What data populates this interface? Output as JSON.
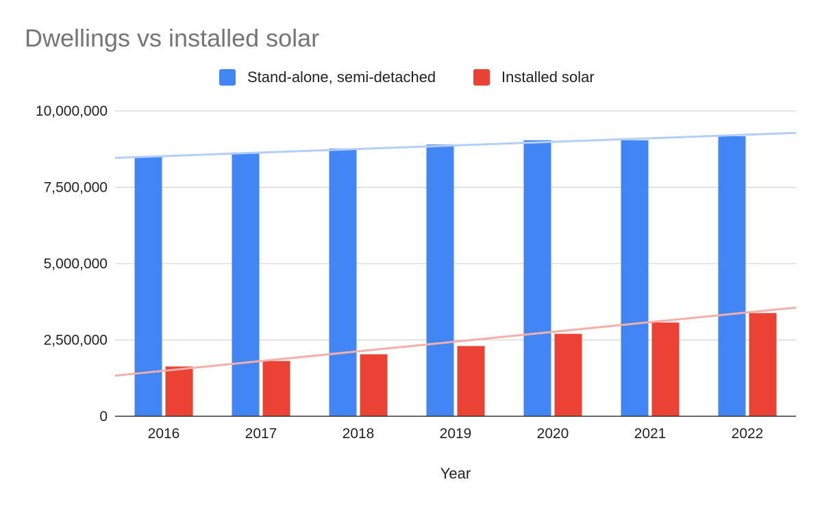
{
  "chart_data": {
    "type": "bar",
    "title": "Dwellings vs installed solar",
    "xlabel": "Year",
    "ylabel": "",
    "categories": [
      "2016",
      "2017",
      "2018",
      "2019",
      "2020",
      "2021",
      "2022"
    ],
    "series": [
      {
        "name": "Stand-alone, semi-detached",
        "color": "#4285F4",
        "values": [
          8500000,
          8640000,
          8770000,
          8900000,
          9040000,
          9040000,
          9170000
        ]
      },
      {
        "name": "Installed solar",
        "color": "#EA4335",
        "values": [
          1630000,
          1810000,
          2030000,
          2300000,
          2700000,
          3070000,
          3380000
        ]
      }
    ],
    "trendlines": [
      {
        "series": "Stand-alone, semi-detached",
        "color": "#B3CEFB",
        "start": 8460000,
        "end": 9280000
      },
      {
        "series": "Installed solar",
        "color": "#F5AFA9",
        "start": 1330000,
        "end": 3560000
      }
    ],
    "ylim": [
      0,
      10000000
    ],
    "yticks": [
      0,
      2500000,
      5000000,
      7500000,
      10000000
    ],
    "ytick_labels": [
      "0",
      "2,500,000",
      "5,000,000",
      "7,500,000",
      "10,000,000"
    ],
    "legend": "top-center",
    "grid": true
  }
}
